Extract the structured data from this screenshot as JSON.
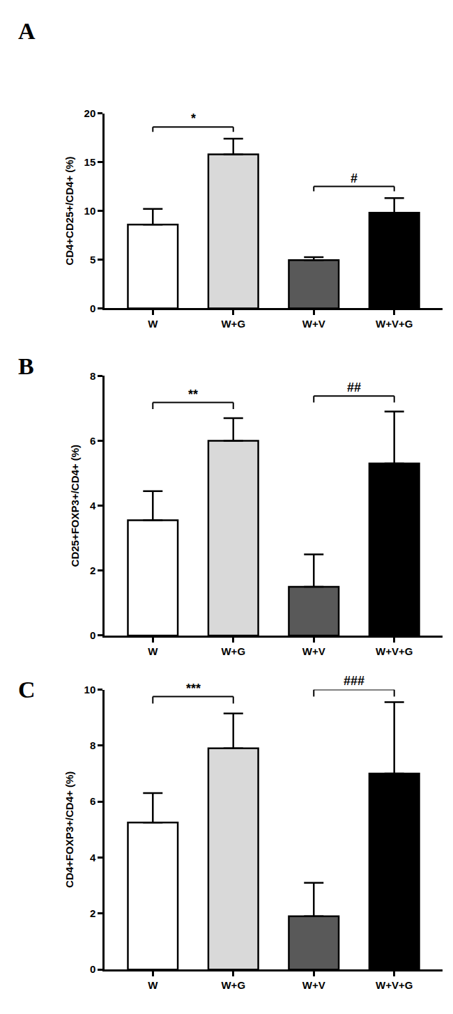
{
  "chart_data": [
    {
      "type": "bar",
      "title": "A",
      "y_label": "CD4+CD25+/CD4+ (%)",
      "categories": [
        "W",
        "W+G",
        "W+V",
        "W+V+G"
      ],
      "values": [
        8.6,
        15.8,
        4.95,
        9.8
      ],
      "errors": [
        1.6,
        1.6,
        0.3,
        1.5
      ],
      "colors": [
        "#ffffff",
        "#d9d9d9",
        "#595959",
        "#000000"
      ],
      "ylim": [
        0,
        20
      ],
      "yticks": [
        0,
        5,
        10,
        15,
        20
      ],
      "grid": false,
      "annotations": [
        {
          "text": "*",
          "from": "W",
          "to": "W+G"
        },
        {
          "text": "#",
          "from": "W+V",
          "to": "W+V+G"
        }
      ]
    },
    {
      "type": "bar",
      "title": "B",
      "y_label": "CD25+FOXP3+/CD4+ (%)",
      "categories": [
        "W",
        "W+G",
        "W+V",
        "W+V+G"
      ],
      "values": [
        3.55,
        6.0,
        1.5,
        5.3
      ],
      "errors": [
        0.9,
        0.7,
        1.0,
        1.6
      ],
      "colors": [
        "#ffffff",
        "#d9d9d9",
        "#595959",
        "#000000"
      ],
      "ylim": [
        0,
        8
      ],
      "yticks": [
        0,
        2,
        4,
        6,
        8
      ],
      "grid": false,
      "annotations": [
        {
          "text": "**",
          "from": "W",
          "to": "W+G"
        },
        {
          "text": "##",
          "from": "W+V",
          "to": "W+V+G"
        }
      ]
    },
    {
      "type": "bar",
      "title": "C",
      "y_label": "CD4+FOXP3+/CD4+ (%)",
      "categories": [
        "W",
        "W+G",
        "W+V",
        "W+V+G"
      ],
      "values": [
        5.25,
        7.9,
        1.9,
        7.0
      ],
      "errors": [
        1.05,
        1.25,
        1.2,
        2.55
      ],
      "colors": [
        "#ffffff",
        "#d9d9d9",
        "#595959",
        "#000000"
      ],
      "ylim": [
        0,
        10
      ],
      "yticks": [
        0,
        2,
        4,
        6,
        8,
        10
      ],
      "grid": false,
      "annotations": [
        {
          "text": "***",
          "from": "W",
          "to": "W+G"
        },
        {
          "text": "###",
          "from": "W+V",
          "to": "W+V+G"
        }
      ]
    }
  ]
}
